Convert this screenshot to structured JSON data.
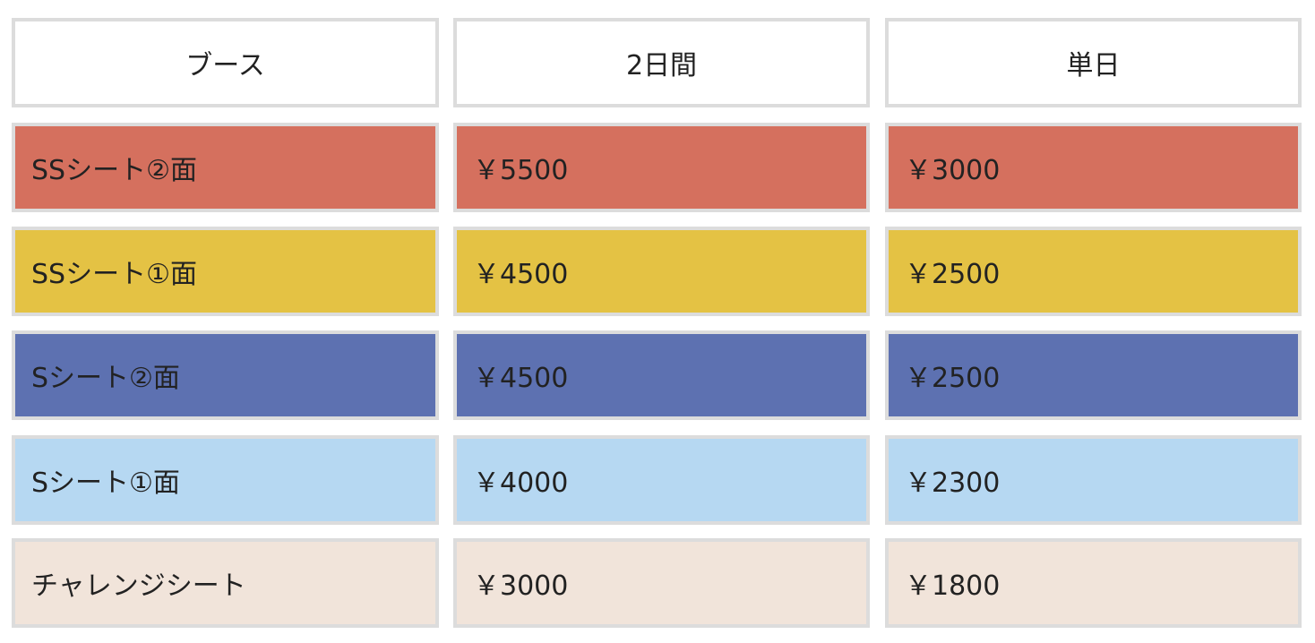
{
  "table": {
    "header": [
      "ブース",
      "2日間",
      "単日"
    ],
    "rows": [
      [
        "SSシート②面",
        "￥5500",
        "￥3000"
      ],
      [
        "SSシート①面",
        "￥4500",
        "￥2500"
      ],
      [
        "Sシート②面",
        "￥4500",
        "￥2500"
      ],
      [
        "Sシート①面",
        "￥4000",
        "￥2300"
      ],
      [
        "チャレンジシート",
        "￥3000",
        "￥1800"
      ]
    ]
  }
}
